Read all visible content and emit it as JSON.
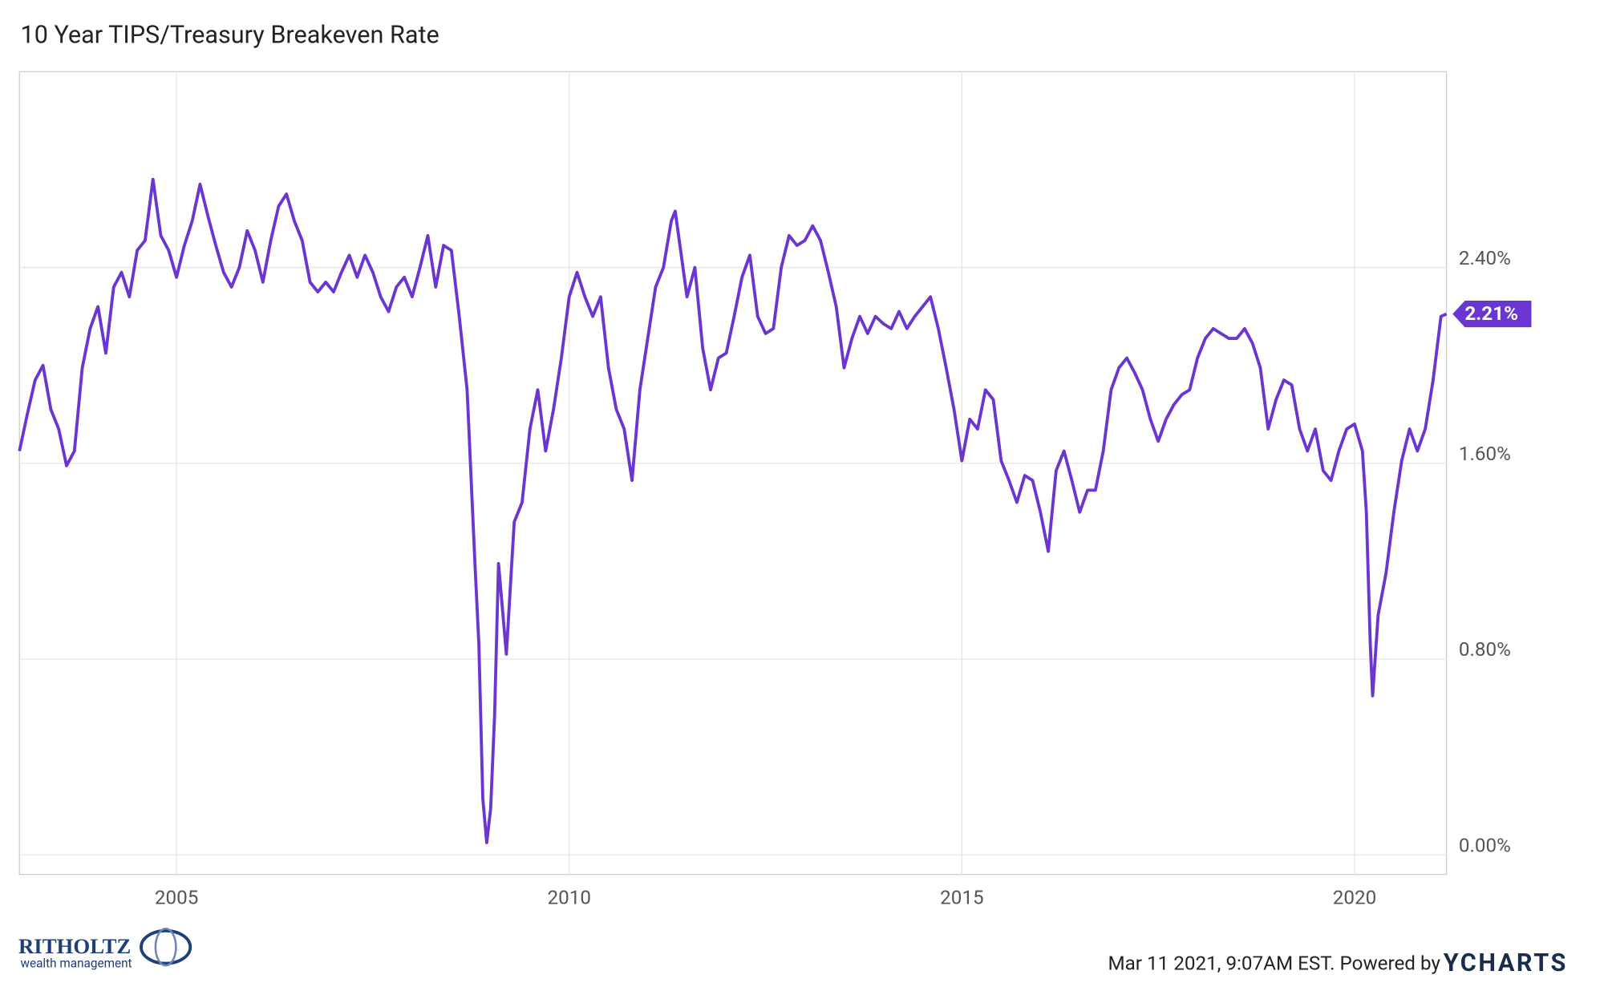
{
  "chart_data": {
    "type": "line",
    "title": "10 Year TIPS/Treasury Breakeven Rate",
    "x": [
      2003.0,
      2003.1,
      2003.2,
      2003.3,
      2003.4,
      2003.5,
      2003.6,
      2003.7,
      2003.8,
      2003.9,
      2004.0,
      2004.1,
      2004.2,
      2004.3,
      2004.4,
      2004.5,
      2004.6,
      2004.7,
      2004.8,
      2004.9,
      2005.0,
      2005.1,
      2005.2,
      2005.3,
      2005.4,
      2005.5,
      2005.6,
      2005.7,
      2005.8,
      2005.9,
      2006.0,
      2006.1,
      2006.2,
      2006.3,
      2006.4,
      2006.5,
      2006.6,
      2006.7,
      2006.8,
      2006.9,
      2007.0,
      2007.1,
      2007.2,
      2007.3,
      2007.4,
      2007.5,
      2007.6,
      2007.7,
      2007.8,
      2007.9,
      2008.0,
      2008.1,
      2008.2,
      2008.3,
      2008.4,
      2008.5,
      2008.6,
      2008.7,
      2008.8,
      2008.85,
      2008.9,
      2008.95,
      2009.0,
      2009.05,
      2009.1,
      2009.2,
      2009.3,
      2009.4,
      2009.5,
      2009.6,
      2009.7,
      2009.8,
      2009.9,
      2010.0,
      2010.1,
      2010.2,
      2010.3,
      2010.4,
      2010.5,
      2010.6,
      2010.7,
      2010.8,
      2010.9,
      2011.0,
      2011.1,
      2011.2,
      2011.3,
      2011.35,
      2011.5,
      2011.6,
      2011.7,
      2011.8,
      2011.9,
      2012.0,
      2012.1,
      2012.2,
      2012.3,
      2012.4,
      2012.5,
      2012.6,
      2012.7,
      2012.8,
      2012.9,
      2013.0,
      2013.1,
      2013.2,
      2013.3,
      2013.4,
      2013.5,
      2013.6,
      2013.7,
      2013.8,
      2013.9,
      2014.0,
      2014.1,
      2014.2,
      2014.3,
      2014.4,
      2014.5,
      2014.6,
      2014.7,
      2014.8,
      2014.9,
      2015.0,
      2015.1,
      2015.2,
      2015.3,
      2015.4,
      2015.5,
      2015.6,
      2015.7,
      2015.8,
      2015.9,
      2016.0,
      2016.1,
      2016.2,
      2016.3,
      2016.4,
      2016.5,
      2016.6,
      2016.7,
      2016.8,
      2016.9,
      2017.0,
      2017.1,
      2017.2,
      2017.3,
      2017.4,
      2017.5,
      2017.6,
      2017.7,
      2017.8,
      2017.9,
      2018.0,
      2018.1,
      2018.2,
      2018.3,
      2018.4,
      2018.5,
      2018.6,
      2018.7,
      2018.8,
      2018.9,
      2019.0,
      2019.1,
      2019.2,
      2019.3,
      2019.4,
      2019.5,
      2019.6,
      2019.7,
      2019.8,
      2019.9,
      2020.0,
      2020.1,
      2020.15,
      2020.2,
      2020.23,
      2020.3,
      2020.4,
      2020.5,
      2020.6,
      2020.7,
      2020.8,
      2020.9,
      2021.0,
      2021.1,
      2021.17
    ],
    "series": [
      {
        "name": "10 Year TIPS/Treasury Breakeven Rate",
        "color": "#6a35d0",
        "values": [
          1.65,
          1.8,
          1.94,
          2.0,
          1.82,
          1.74,
          1.59,
          1.65,
          1.99,
          2.15,
          2.24,
          2.05,
          2.32,
          2.38,
          2.28,
          2.47,
          2.51,
          2.76,
          2.53,
          2.47,
          2.36,
          2.49,
          2.59,
          2.74,
          2.61,
          2.49,
          2.38,
          2.32,
          2.4,
          2.55,
          2.47,
          2.34,
          2.51,
          2.65,
          2.7,
          2.59,
          2.51,
          2.34,
          2.3,
          2.34,
          2.3,
          2.38,
          2.45,
          2.36,
          2.45,
          2.38,
          2.28,
          2.22,
          2.32,
          2.36,
          2.28,
          2.4,
          2.53,
          2.32,
          2.49,
          2.47,
          2.2,
          1.9,
          1.19,
          0.86,
          0.23,
          0.05,
          0.19,
          0.57,
          1.19,
          0.82,
          1.36,
          1.44,
          1.74,
          1.9,
          1.65,
          1.82,
          2.03,
          2.28,
          2.38,
          2.28,
          2.2,
          2.28,
          1.99,
          1.82,
          1.74,
          1.53,
          1.9,
          2.11,
          2.32,
          2.4,
          2.59,
          2.63,
          2.28,
          2.4,
          2.07,
          1.9,
          2.03,
          2.05,
          2.2,
          2.36,
          2.45,
          2.2,
          2.13,
          2.15,
          2.4,
          2.53,
          2.49,
          2.51,
          2.57,
          2.51,
          2.38,
          2.24,
          1.99,
          2.11,
          2.2,
          2.13,
          2.2,
          2.17,
          2.15,
          2.22,
          2.15,
          2.2,
          2.24,
          2.28,
          2.15,
          1.99,
          1.82,
          1.61,
          1.78,
          1.74,
          1.9,
          1.86,
          1.61,
          1.53,
          1.44,
          1.55,
          1.53,
          1.4,
          1.24,
          1.57,
          1.65,
          1.53,
          1.4,
          1.49,
          1.49,
          1.65,
          1.9,
          1.99,
          2.03,
          1.97,
          1.9,
          1.78,
          1.69,
          1.78,
          1.84,
          1.88,
          1.9,
          2.03,
          2.11,
          2.15,
          2.13,
          2.11,
          2.11,
          2.15,
          2.09,
          1.99,
          1.74,
          1.86,
          1.94,
          1.92,
          1.74,
          1.65,
          1.74,
          1.57,
          1.53,
          1.65,
          1.74,
          1.76,
          1.65,
          1.4,
          0.86,
          0.65,
          0.98,
          1.15,
          1.4,
          1.61,
          1.74,
          1.65,
          1.74,
          1.94,
          2.2,
          2.21
        ]
      }
    ],
    "xlim": [
      2003.0,
      2021.17
    ],
    "xticks": [
      2005,
      2010,
      2015,
      2020
    ],
    "ylim": [
      -0.08,
      3.2
    ],
    "yticks": [
      {
        "value": 0,
        "label": "0.00%"
      },
      {
        "value": 0.8,
        "label": "0.80%"
      },
      {
        "value": 1.6,
        "label": "1.60%"
      },
      {
        "value": 2.4,
        "label": "2.40%"
      }
    ],
    "grid": true,
    "end_label": {
      "value": 2.21,
      "label": "2.21%"
    },
    "footer": {
      "timestamp": "Mar 11 2021, 9:07AM EST. Powered by",
      "brand": "YCHARTS",
      "logo_name": "RITHOLTZ",
      "logo_tagline": "wealth management"
    }
  }
}
